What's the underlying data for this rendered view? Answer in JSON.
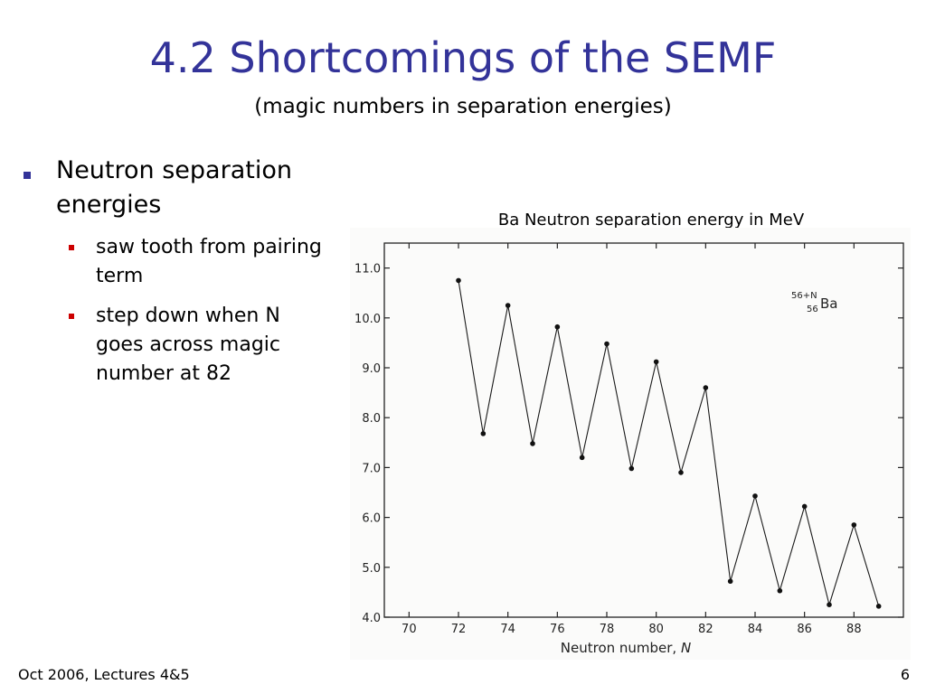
{
  "slide": {
    "title": "4.2 Shortcomings of the SEMF",
    "subtitle": "(magic numbers in separation energies)",
    "title_color": "#333399",
    "bullet_marker_color": "#333399",
    "sub_bullet_marker_color": "#cc0000"
  },
  "bullets": {
    "main": "Neutron separation energies",
    "sub": [
      "saw tooth from pairing term",
      "step down when N goes across magic number at 82"
    ]
  },
  "chart_caption": "Ba Neutron separation energy in MeV",
  "chart_data": {
    "type": "line",
    "title": "",
    "xlabel_text": "Neutron number, ",
    "xlabel_var": "N",
    "ylabel": "",
    "xlim": [
      69,
      90
    ],
    "ylim": [
      4.0,
      11.5
    ],
    "xticks": [
      70,
      72,
      74,
      76,
      78,
      80,
      82,
      84,
      86,
      88
    ],
    "yticks": [
      4.0,
      5.0,
      6.0,
      7.0,
      8.0,
      9.0,
      10.0,
      11.0
    ],
    "ytick_labels": [
      "4.0",
      "5.0",
      "6.0",
      "7.0",
      "8.0",
      "9.0",
      "10.0",
      "11.0"
    ],
    "grid": false,
    "legend": "none",
    "annotation": {
      "element": "Ba",
      "mass_superscript": "56+N",
      "atomic_subscript": "56"
    },
    "series": [
      {
        "x": [
          72,
          73,
          74,
          75,
          76,
          77,
          78,
          79,
          80,
          81,
          82,
          83,
          84,
          85,
          86,
          87,
          88,
          89
        ],
        "values": [
          10.75,
          7.68,
          10.25,
          7.48,
          9.82,
          7.2,
          9.48,
          6.98,
          9.12,
          6.9,
          8.6,
          4.72,
          6.43,
          4.53,
          6.22,
          4.25,
          5.85,
          4.22
        ]
      }
    ]
  }
}
